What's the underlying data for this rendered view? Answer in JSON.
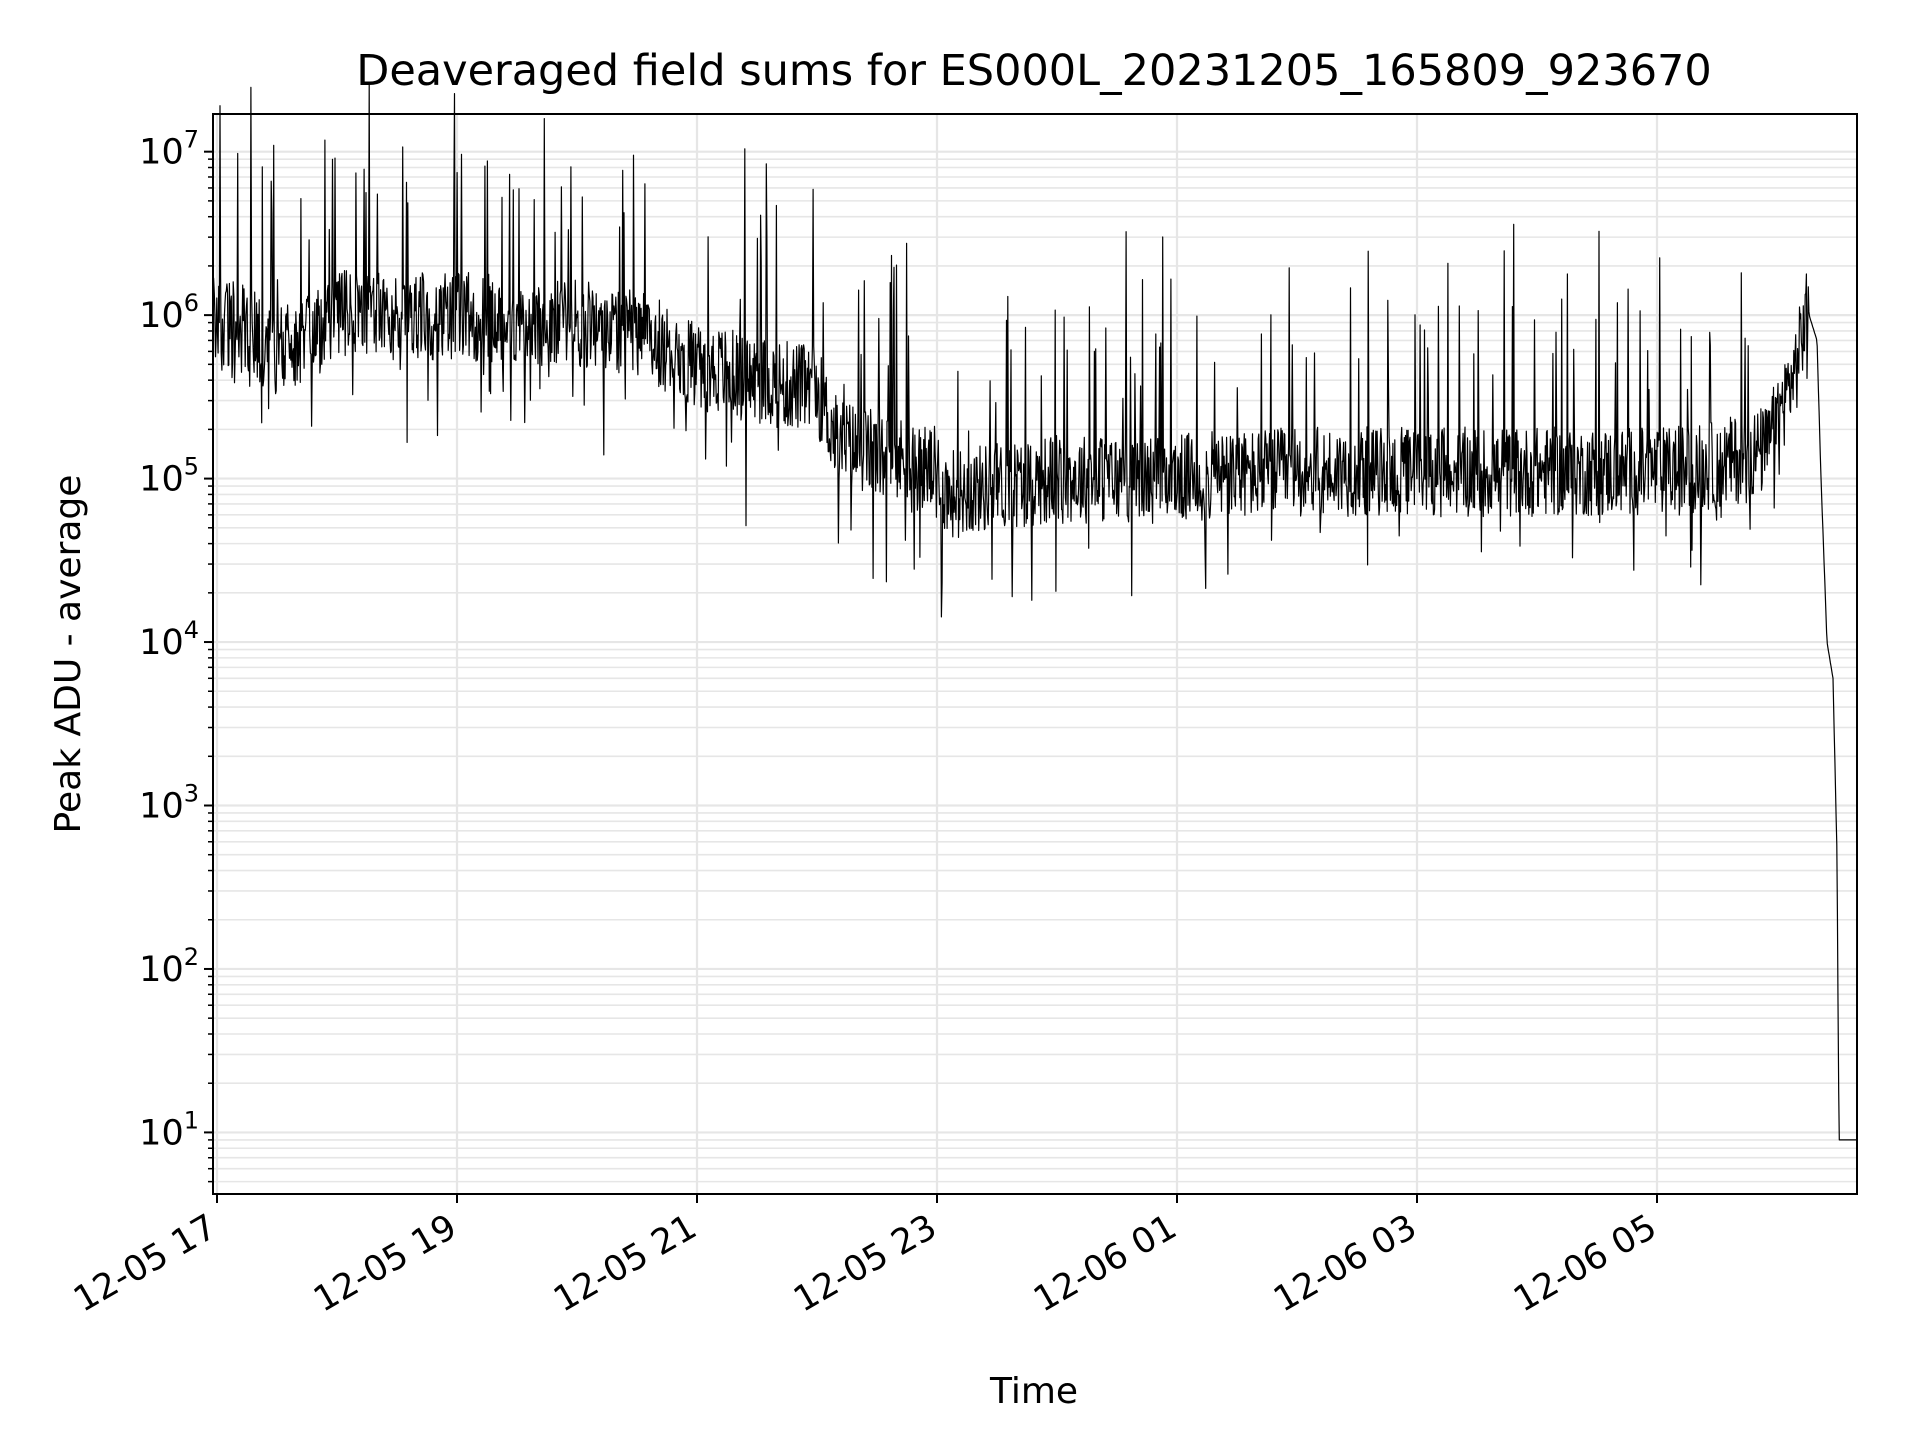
{
  "chart_data": {
    "type": "line",
    "title": "Deaveraged field sums for ES000L_20231205_165809_923670",
    "xlabel": "Time",
    "ylabel": "Peak ADU - average",
    "yscale": "log",
    "ylim": [
      4.2,
      17000000.0
    ],
    "xlim": [
      "2023-12-05 16:58",
      "2023-12-06 06:40"
    ],
    "grid": true,
    "line_color": "#000000",
    "grid_color": "#e6e6e6",
    "x_ticks": [
      {
        "time": "2023-12-05 17:00",
        "label": "12-05 17"
      },
      {
        "time": "2023-12-05 19:00",
        "label": "12-05 19"
      },
      {
        "time": "2023-12-05 21:00",
        "label": "12-05 21"
      },
      {
        "time": "2023-12-05 23:00",
        "label": "12-05 23"
      },
      {
        "time": "2023-12-06 01:00",
        "label": "12-06 01"
      },
      {
        "time": "2023-12-06 03:00",
        "label": "12-06 03"
      },
      {
        "time": "2023-12-06 05:00",
        "label": "12-06 05"
      }
    ],
    "y_ticks": [
      {
        "value": 10,
        "base": "10",
        "exp": "1"
      },
      {
        "value": 100,
        "base": "10",
        "exp": "2"
      },
      {
        "value": 1000,
        "base": "10",
        "exp": "3"
      },
      {
        "value": 10000,
        "base": "10",
        "exp": "4"
      },
      {
        "value": 100000,
        "base": "10",
        "exp": "5"
      },
      {
        "value": 1000000,
        "base": "10",
        "exp": "6"
      },
      {
        "value": 10000000,
        "base": "10",
        "exp": "7"
      }
    ],
    "series": [
      {
        "x": [
          "2023-12-05 16:58",
          "2023-12-05 17:15",
          "2023-12-05 17:30",
          "2023-12-05 17:45",
          "2023-12-05 18:00",
          "2023-12-05 18:30",
          "2023-12-05 19:00",
          "2023-12-05 19:30",
          "2023-12-05 20:00",
          "2023-12-05 20:30",
          "2023-12-05 21:00",
          "2023-12-05 21:30",
          "2023-12-05 22:00",
          "2023-12-05 22:10",
          "2023-12-05 22:30",
          "2023-12-05 23:00",
          "2023-12-05 23:05",
          "2023-12-05 23:30",
          "2023-12-06 00:00",
          "2023-12-06 01:00",
          "2023-12-06 02:00",
          "2023-12-06 03:00",
          "2023-12-06 04:00",
          "2023-12-06 05:00",
          "2023-12-06 05:30",
          "2023-12-06 05:55",
          "2023-12-06 06:10",
          "2023-12-06 06:15",
          "2023-12-06 06:20",
          "2023-12-06 06:22",
          "2023-12-06 06:25",
          "2023-12-06 06:28",
          "2023-12-06 06:30",
          "2023-12-06 06:31",
          "2023-12-06 06:40"
        ],
        "y": [
          1000000,
          800000,
          600000,
          700000,
          1000000,
          1000000,
          1000000,
          900000,
          900000,
          800000,
          500000,
          400000,
          350000,
          170000,
          140000,
          110000,
          80000,
          90000,
          100000,
          100000,
          110000,
          110000,
          110000,
          110000,
          120000,
          150000,
          500000,
          1100000,
          700000,
          100000,
          10000,
          6000,
          500,
          9,
          9
        ]
      }
    ]
  }
}
